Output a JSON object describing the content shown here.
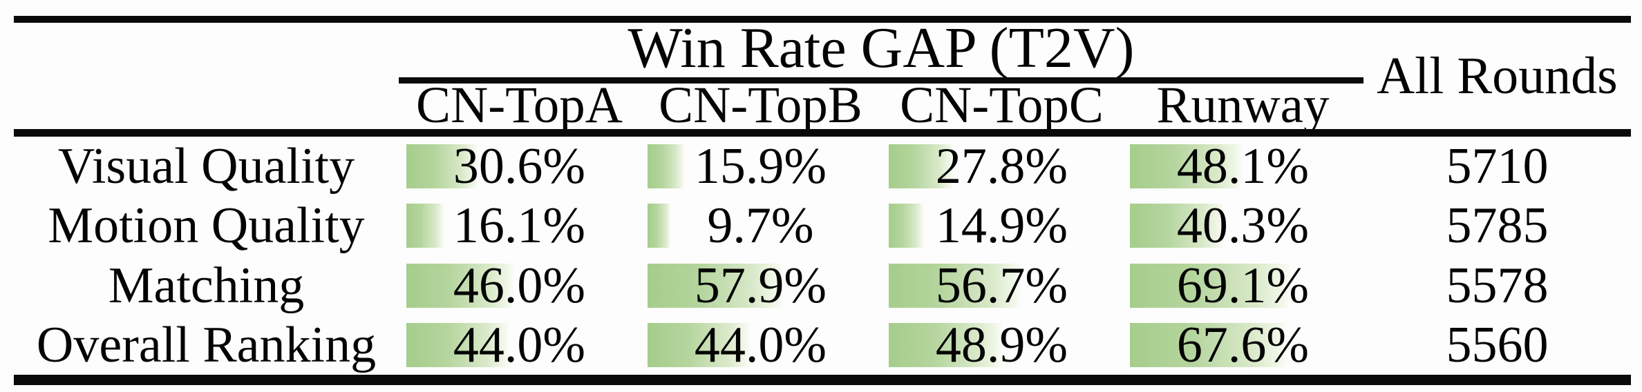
{
  "table": {
    "group_title": "Win Rate GAP (T2V)",
    "all_rounds_label": "All Rounds",
    "columns": [
      {
        "label": "CN-TopA"
      },
      {
        "label": "CN-TopB"
      },
      {
        "label": "CN-TopC"
      },
      {
        "label": "Runway"
      }
    ],
    "bar_color_start": "#a5cd8b",
    "bar_color_end": "#fbfdf8",
    "rows": [
      {
        "label": "Visual Quality",
        "cells": [
          {
            "text": "30.6%",
            "value": 30.6
          },
          {
            "text": "15.9%",
            "value": 15.9
          },
          {
            "text": "27.8%",
            "value": 27.8
          },
          {
            "text": "48.1%",
            "value": 48.1
          }
        ],
        "all_rounds": "5710"
      },
      {
        "label": "Motion Quality",
        "cells": [
          {
            "text": "16.1%",
            "value": 16.1
          },
          {
            "text": "9.7%",
            "value": 9.7
          },
          {
            "text": "14.9%",
            "value": 14.9
          },
          {
            "text": "40.3%",
            "value": 40.3
          }
        ],
        "all_rounds": "5785"
      },
      {
        "label": "Matching",
        "cells": [
          {
            "text": "46.0%",
            "value": 46.0
          },
          {
            "text": "57.9%",
            "value": 57.9
          },
          {
            "text": "56.7%",
            "value": 56.7
          },
          {
            "text": "69.1%",
            "value": 69.1
          }
        ],
        "all_rounds": "5578"
      },
      {
        "label": "Overall Ranking",
        "cells": [
          {
            "text": "44.0%",
            "value": 44.0
          },
          {
            "text": "44.0%",
            "value": 44.0
          },
          {
            "text": "48.9%",
            "value": 48.9
          },
          {
            "text": "67.6%",
            "value": 67.6
          }
        ],
        "all_rounds": "5560"
      }
    ]
  },
  "chart_data": {
    "type": "table",
    "title": "Win Rate GAP (T2V)",
    "columns": [
      "CN-TopA",
      "CN-TopB",
      "CN-TopC",
      "Runway",
      "All Rounds"
    ],
    "row_headers": [
      "Visual Quality",
      "Motion Quality",
      "Matching",
      "Overall Ranking"
    ],
    "rows": [
      [
        30.6,
        15.9,
        27.8,
        48.1,
        5710
      ],
      [
        16.1,
        9.7,
        14.9,
        40.3,
        5785
      ],
      [
        46.0,
        57.9,
        56.7,
        69.1,
        5578
      ],
      [
        44.0,
        44.0,
        48.9,
        67.6,
        5560
      ]
    ],
    "units": [
      "percent",
      "percent",
      "percent",
      "percent",
      "count"
    ],
    "annotations": "green data bars behind percentages, width proportional to value, gradient green-to-white"
  }
}
